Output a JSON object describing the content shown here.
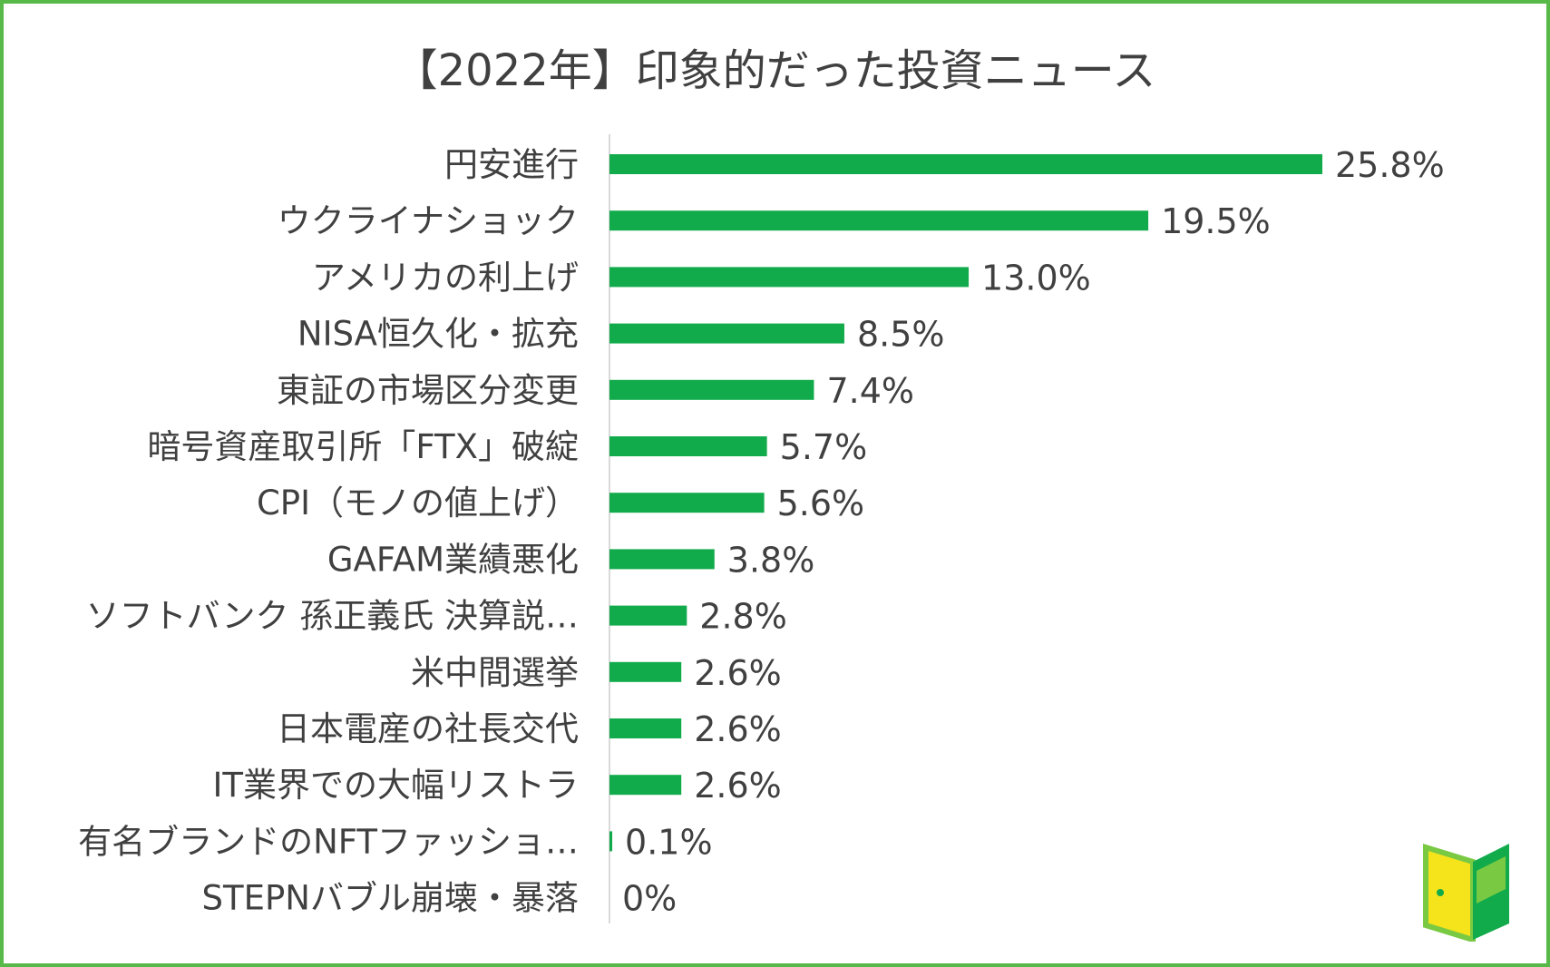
{
  "chart_data": {
    "type": "bar",
    "orientation": "horizontal",
    "title": "【2022年】印象的だった投資ニュース",
    "xlabel": "",
    "ylabel": "",
    "xlim": [
      0,
      25.8
    ],
    "grid": false,
    "legend": "none",
    "unit": "%",
    "categories": [
      "円安進行",
      "ウクライナショック",
      "アメリカの利上げ",
      "NISA恒久化・拡充",
      "東証の市場区分変更",
      "暗号資産取引所「FTX」破綻",
      "CPI（モノの値上げ）",
      "GAFAM業績悪化",
      "ソフトバンク 孫正義氏 決算説…",
      "米中間選挙",
      "日本電産の社長交代",
      "IT業界での大幅リストラ",
      "有名ブランドのNFTファッショ…",
      "STEPNバブル崩壊・暴落"
    ],
    "values": [
      25.8,
      19.5,
      13.0,
      8.5,
      7.4,
      5.7,
      5.6,
      3.8,
      2.8,
      2.6,
      2.6,
      2.6,
      0.1,
      0
    ],
    "data_labels": [
      "25.8%",
      "19.5%",
      "13.0%",
      "8.5%",
      "7.4%",
      "5.7%",
      "5.6%",
      "3.8%",
      "2.8%",
      "2.6%",
      "2.6%",
      "2.6%",
      "0.1%",
      "0%"
    ],
    "colors": {
      "bar": "#12ab4b",
      "axis": "#d9d9d9",
      "text": "#404040"
    }
  },
  "frame": {
    "border_color": "#57b947"
  },
  "logo": {
    "name": "door-logo-icon",
    "colors": [
      "#7ac943",
      "#f5e31b",
      "#12ab4b"
    ]
  }
}
